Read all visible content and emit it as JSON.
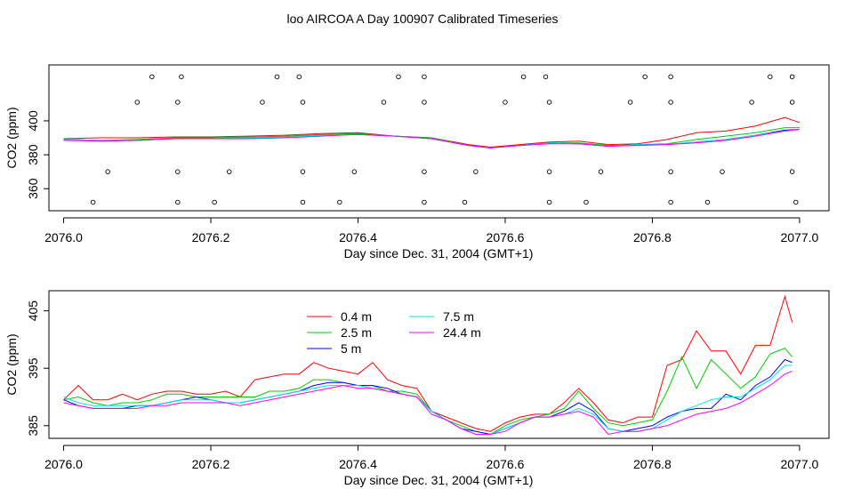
{
  "title": "loo AIRCOA A  Day 100907  Calibrated Timeseries",
  "chart_data": [
    {
      "type": "line",
      "xlabel": "Day since Dec. 31, 2004 (GMT+1)",
      "ylabel": "CO2 (ppm)",
      "xlim": [
        2075.98,
        2077.04
      ],
      "ylim": [
        347,
        433
      ],
      "xticks": [
        "2076.0",
        "2076.2",
        "2076.4",
        "2076.6",
        "2076.8",
        "2077.0"
      ],
      "xtick_values": [
        2076.0,
        2076.2,
        2076.4,
        2076.6,
        2076.8,
        2077.0
      ],
      "yticks": [
        "360",
        "380",
        "400"
      ],
      "ytick_values": [
        360,
        380,
        400
      ],
      "grid": false,
      "x": [
        2076.0,
        2076.05,
        2076.1,
        2076.15,
        2076.2,
        2076.25,
        2076.3,
        2076.35,
        2076.4,
        2076.45,
        2076.5,
        2076.55,
        2076.58,
        2076.62,
        2076.66,
        2076.7,
        2076.74,
        2076.78,
        2076.82,
        2076.86,
        2076.9,
        2076.94,
        2076.98,
        2077.0
      ],
      "series": [
        {
          "color": "#ff0000",
          "values": [
            389.5,
            390,
            390,
            390.5,
            390.5,
            391,
            391.5,
            392.5,
            393,
            391,
            390,
            386,
            384.5,
            386,
            387.5,
            388,
            386,
            386.5,
            389,
            393,
            394,
            397,
            402,
            399
          ]
        },
        {
          "color": "#00cc00",
          "values": [
            389,
            388.5,
            389,
            390,
            390,
            390.5,
            391,
            392,
            392.5,
            391,
            390,
            385.5,
            384,
            385.5,
            387,
            387,
            385.5,
            386,
            386.5,
            389,
            391,
            393,
            396,
            396
          ]
        },
        {
          "color": "#0000ff",
          "values": [
            389,
            388.5,
            388.5,
            389.5,
            389.5,
            390,
            390.5,
            391.5,
            392,
            391,
            389.5,
            385.5,
            384,
            385.5,
            387,
            386.5,
            385,
            386,
            386,
            387.5,
            389,
            391.5,
            394.5,
            395
          ]
        },
        {
          "color": "#00e5e5",
          "values": [
            389,
            388.5,
            388.5,
            389.5,
            389.5,
            390,
            390.5,
            391.5,
            392,
            391,
            389.5,
            385.5,
            384,
            385.5,
            387,
            386.5,
            385,
            386,
            386,
            387.5,
            389,
            391.5,
            394,
            395
          ]
        },
        {
          "color": "#ff00ff",
          "values": [
            388.5,
            388,
            388.5,
            389.5,
            389.5,
            389.5,
            390,
            391,
            392,
            391,
            389.5,
            385.5,
            384,
            385.5,
            386.5,
            386.5,
            385,
            385.5,
            386,
            387,
            388.5,
            391,
            394,
            395
          ]
        }
      ],
      "markers": [
        {
          "x": 2076.12,
          "y": 426
        },
        {
          "x": 2076.16,
          "y": 426
        },
        {
          "x": 2076.29,
          "y": 426
        },
        {
          "x": 2076.32,
          "y": 426
        },
        {
          "x": 2076.455,
          "y": 426
        },
        {
          "x": 2076.49,
          "y": 426
        },
        {
          "x": 2076.625,
          "y": 426
        },
        {
          "x": 2076.655,
          "y": 426
        },
        {
          "x": 2076.79,
          "y": 426
        },
        {
          "x": 2076.825,
          "y": 426
        },
        {
          "x": 2076.96,
          "y": 426
        },
        {
          "x": 2076.99,
          "y": 426
        },
        {
          "x": 2076.1,
          "y": 411
        },
        {
          "x": 2076.155,
          "y": 411
        },
        {
          "x": 2076.27,
          "y": 411
        },
        {
          "x": 2076.325,
          "y": 411
        },
        {
          "x": 2076.435,
          "y": 411
        },
        {
          "x": 2076.49,
          "y": 411
        },
        {
          "x": 2076.6,
          "y": 411
        },
        {
          "x": 2076.66,
          "y": 411
        },
        {
          "x": 2076.77,
          "y": 411
        },
        {
          "x": 2076.825,
          "y": 411
        },
        {
          "x": 2076.935,
          "y": 411
        },
        {
          "x": 2076.99,
          "y": 411
        },
        {
          "x": 2076.06,
          "y": 370
        },
        {
          "x": 2076.155,
          "y": 370
        },
        {
          "x": 2076.225,
          "y": 370
        },
        {
          "x": 2076.325,
          "y": 370
        },
        {
          "x": 2076.395,
          "y": 370
        },
        {
          "x": 2076.49,
          "y": 370
        },
        {
          "x": 2076.56,
          "y": 370
        },
        {
          "x": 2076.66,
          "y": 370
        },
        {
          "x": 2076.73,
          "y": 370
        },
        {
          "x": 2076.825,
          "y": 370
        },
        {
          "x": 2076.895,
          "y": 370
        },
        {
          "x": 2076.99,
          "y": 370
        },
        {
          "x": 2076.04,
          "y": 352
        },
        {
          "x": 2076.155,
          "y": 352
        },
        {
          "x": 2076.205,
          "y": 352
        },
        {
          "x": 2076.325,
          "y": 352
        },
        {
          "x": 2076.375,
          "y": 352
        },
        {
          "x": 2076.49,
          "y": 352
        },
        {
          "x": 2076.545,
          "y": 352
        },
        {
          "x": 2076.66,
          "y": 352
        },
        {
          "x": 2076.71,
          "y": 352
        },
        {
          "x": 2076.825,
          "y": 352
        },
        {
          "x": 2076.875,
          "y": 352
        },
        {
          "x": 2076.995,
          "y": 352
        }
      ]
    },
    {
      "type": "line",
      "xlabel": "Day since Dec. 31, 2004 (GMT+1)",
      "ylabel": "CO2 (ppm)",
      "xlim": [
        2075.98,
        2077.04
      ],
      "ylim": [
        382.8,
        408.5
      ],
      "xticks": [
        "2076.0",
        "2076.2",
        "2076.4",
        "2076.6",
        "2076.8",
        "2077.0"
      ],
      "xtick_values": [
        2076.0,
        2076.2,
        2076.4,
        2076.6,
        2076.8,
        2077.0
      ],
      "yticks": [
        "385",
        "395",
        "405"
      ],
      "ytick_values": [
        385,
        395,
        405
      ],
      "grid": false,
      "legend_position": "top-left",
      "x": [
        2076.0,
        2076.02,
        2076.04,
        2076.06,
        2076.08,
        2076.1,
        2076.12,
        2076.14,
        2076.16,
        2076.18,
        2076.2,
        2076.22,
        2076.24,
        2076.26,
        2076.28,
        2076.3,
        2076.32,
        2076.34,
        2076.36,
        2076.38,
        2076.4,
        2076.42,
        2076.44,
        2076.46,
        2076.48,
        2076.5,
        2076.52,
        2076.54,
        2076.56,
        2076.58,
        2076.6,
        2076.62,
        2076.64,
        2076.66,
        2076.68,
        2076.7,
        2076.72,
        2076.74,
        2076.76,
        2076.78,
        2076.8,
        2076.82,
        2076.84,
        2076.86,
        2076.88,
        2076.9,
        2076.92,
        2076.94,
        2076.96,
        2076.98,
        2076.99
      ],
      "series": [
        {
          "name": "0.4 m",
          "color": "#ff0000",
          "values": [
            389.5,
            392,
            389.5,
            389.5,
            390.5,
            389.5,
            390.5,
            391,
            391,
            390.5,
            390.5,
            391,
            390,
            393,
            393.5,
            394,
            394,
            396,
            395,
            394.5,
            394,
            396,
            393,
            392,
            391.5,
            387.5,
            386.5,
            385.5,
            384.5,
            384,
            385.5,
            386.5,
            387,
            387,
            389,
            391.5,
            389,
            386,
            385.5,
            386.5,
            386.5,
            395.5,
            396.5,
            401.5,
            398,
            398,
            394,
            399,
            399,
            407.5,
            403
          ]
        },
        {
          "name": "2.5 m",
          "color": "#00cc00",
          "values": [
            389.5,
            390,
            389,
            388.5,
            389,
            389,
            389.5,
            390.5,
            390.5,
            390,
            390,
            390,
            390,
            390,
            391,
            391,
            391.5,
            393,
            393,
            392.5,
            392,
            392,
            391,
            391,
            390.5,
            387.5,
            386,
            385,
            384,
            383.5,
            385,
            386,
            386.5,
            387,
            388,
            391,
            388,
            385.5,
            385,
            385.5,
            386,
            391,
            397,
            391.5,
            396.5,
            394,
            391.5,
            393.5,
            397.5,
            398.5,
            397
          ]
        },
        {
          "name": "5 m",
          "color": "#0000ff",
          "values": [
            389.5,
            388.5,
            388,
            388,
            388,
            388.5,
            388.5,
            389,
            389.5,
            390,
            389.5,
            389,
            389,
            389.5,
            390,
            390.5,
            391,
            392,
            392.5,
            392.5,
            392,
            392,
            391.5,
            390.5,
            390,
            387.5,
            386,
            384.5,
            384,
            383.5,
            384.5,
            385.5,
            386.5,
            386.5,
            387.5,
            389,
            387.5,
            384.5,
            384,
            384.5,
            385,
            386.5,
            387.5,
            388,
            388,
            390.5,
            389.5,
            392,
            393.5,
            396.5,
            396
          ]
        },
        {
          "name": "7.5 m",
          "color": "#00e5e5",
          "values": [
            390,
            389,
            388.5,
            388.5,
            388.5,
            388.5,
            388.5,
            389,
            389.5,
            389.5,
            389.5,
            389,
            389,
            389.5,
            390,
            390.5,
            391,
            391.5,
            392,
            392,
            392,
            391.5,
            391,
            390.5,
            390,
            387.5,
            386,
            384.5,
            383.5,
            383.5,
            384.5,
            385.5,
            386.5,
            386.5,
            387,
            388,
            387,
            384.5,
            384,
            384,
            384.5,
            386,
            387.5,
            388.5,
            389.5,
            390,
            390,
            391.5,
            393,
            395.5,
            395.5
          ]
        },
        {
          "name": "24.4 m",
          "color": "#ff00ff",
          "values": [
            389,
            388.5,
            388,
            388,
            388,
            388,
            388.5,
            388.5,
            389,
            389,
            389,
            389,
            388.5,
            389,
            389.5,
            390,
            390.5,
            391,
            391.5,
            392,
            391.5,
            391.5,
            391,
            390.5,
            390,
            387,
            386,
            384.5,
            383.5,
            383.5,
            384,
            385.5,
            386.5,
            386.5,
            387,
            387.5,
            386.5,
            383.5,
            384,
            384,
            384.5,
            385,
            386,
            387,
            387.5,
            388,
            389,
            390.5,
            392,
            394,
            394.5
          ]
        }
      ]
    }
  ]
}
